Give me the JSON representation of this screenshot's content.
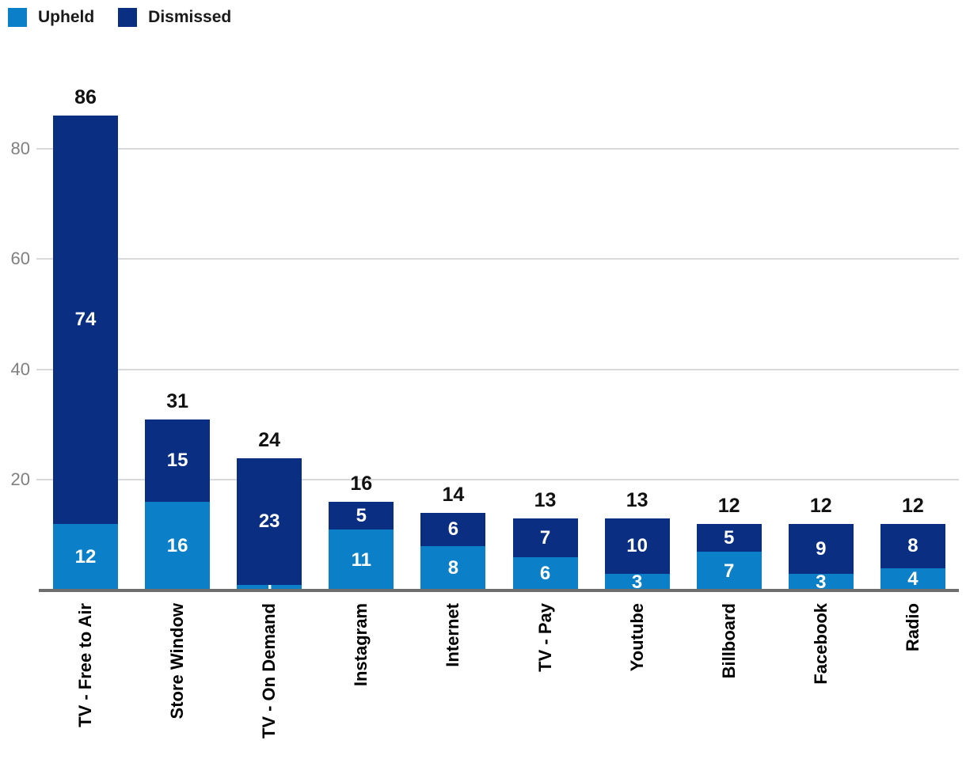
{
  "legend": {
    "items": [
      {
        "label": "Upheld",
        "color": "#0B80C9"
      },
      {
        "label": "Dismissed",
        "color": "#0A2E82"
      }
    ]
  },
  "colors": {
    "upheld": "#0B80C9",
    "dismissed": "#0A2E82",
    "gridline": "#D9D9D9",
    "axis_line": "#6E6E6E",
    "tick_text": "#808080",
    "label_text": "#111111",
    "segment_text": "#ffffff",
    "background": "#ffffff"
  },
  "chart_data": {
    "type": "bar",
    "stacked": true,
    "title": "",
    "xlabel": "",
    "ylabel": "",
    "categories": [
      "TV - Free to Air",
      "Store Window",
      "TV - On Demand",
      "Instagram",
      "Internet",
      "TV - Pay",
      "Youtube",
      "Billboard",
      "Facebook",
      "Radio"
    ],
    "series": [
      {
        "name": "Upheld",
        "color": "#0B80C9",
        "values": [
          12,
          16,
          1,
          11,
          8,
          6,
          3,
          7,
          3,
          4
        ]
      },
      {
        "name": "Dismissed",
        "color": "#0A2E82",
        "values": [
          74,
          15,
          23,
          5,
          6,
          7,
          10,
          5,
          9,
          8
        ]
      }
    ],
    "totals": [
      86,
      31,
      24,
      16,
      14,
      13,
      13,
      12,
      12,
      12
    ],
    "y_ticks": [
      20,
      40,
      60,
      80
    ],
    "ylim": [
      0,
      86
    ],
    "grid": true,
    "legend_position": "top-left"
  }
}
